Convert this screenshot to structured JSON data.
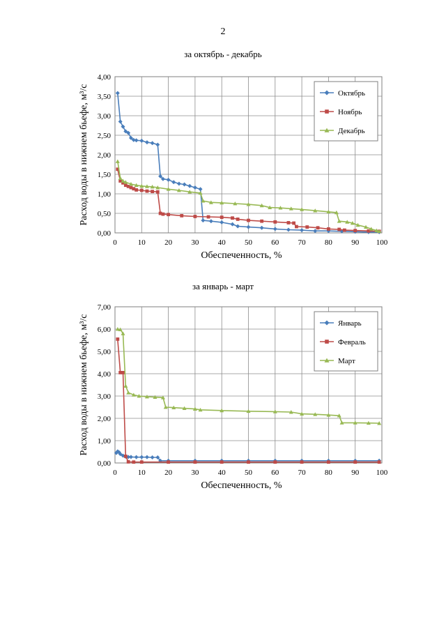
{
  "page_number": "2",
  "chart_data": [
    {
      "type": "line",
      "title": "за октябрь - декабрь",
      "xlabel": "Обеспеченность, %",
      "ylabel": "Расход воды в нижнем бьефе, м³/с",
      "xlim": [
        0,
        100
      ],
      "ylim": [
        0,
        4
      ],
      "x_ticks": [
        "0",
        "10",
        "20",
        "30",
        "40",
        "50",
        "60",
        "70",
        "80",
        "90",
        "100"
      ],
      "y_ticks": [
        "0,00",
        "0,50",
        "1,00",
        "1,50",
        "2,00",
        "2,50",
        "3,00",
        "3,50",
        "4,00"
      ],
      "grid": true,
      "legend_position": "top-right",
      "series": [
        {
          "name": "Октябрь",
          "color": "#4a7ebb",
          "marker": "diamond",
          "points": [
            [
              1,
              3.58
            ],
            [
              2,
              2.85
            ],
            [
              3,
              2.72
            ],
            [
              4,
              2.6
            ],
            [
              5,
              2.56
            ],
            [
              6,
              2.43
            ],
            [
              7,
              2.38
            ],
            [
              8,
              2.37
            ],
            [
              10,
              2.36
            ],
            [
              12,
              2.32
            ],
            [
              14,
              2.3
            ],
            [
              16,
              2.26
            ],
            [
              17,
              1.45
            ],
            [
              18,
              1.38
            ],
            [
              20,
              1.36
            ],
            [
              22,
              1.3
            ],
            [
              24,
              1.26
            ],
            [
              26,
              1.24
            ],
            [
              28,
              1.2
            ],
            [
              30,
              1.16
            ],
            [
              32,
              1.12
            ],
            [
              33,
              0.32
            ],
            [
              36,
              0.3
            ],
            [
              40,
              0.27
            ],
            [
              44,
              0.22
            ],
            [
              46,
              0.17
            ],
            [
              50,
              0.15
            ],
            [
              55,
              0.13
            ],
            [
              60,
              0.1
            ],
            [
              65,
              0.08
            ],
            [
              70,
              0.07
            ],
            [
              75,
              0.05
            ],
            [
              80,
              0.05
            ],
            [
              85,
              0.04
            ],
            [
              90,
              0.03
            ],
            [
              95,
              0.02
            ],
            [
              99,
              0.02
            ]
          ]
        },
        {
          "name": "Ноябрь",
          "color": "#be4b48",
          "marker": "square",
          "points": [
            [
              1,
              1.63
            ],
            [
              2,
              1.33
            ],
            [
              3,
              1.28
            ],
            [
              4,
              1.22
            ],
            [
              5,
              1.19
            ],
            [
              6,
              1.16
            ],
            [
              7,
              1.13
            ],
            [
              8,
              1.1
            ],
            [
              10,
              1.09
            ],
            [
              12,
              1.07
            ],
            [
              14,
              1.06
            ],
            [
              16,
              1.05
            ],
            [
              17,
              0.5
            ],
            [
              18,
              0.48
            ],
            [
              20,
              0.47
            ],
            [
              25,
              0.44
            ],
            [
              30,
              0.42
            ],
            [
              35,
              0.41
            ],
            [
              40,
              0.4
            ],
            [
              44,
              0.38
            ],
            [
              46,
              0.35
            ],
            [
              50,
              0.32
            ],
            [
              55,
              0.3
            ],
            [
              60,
              0.28
            ],
            [
              65,
              0.26
            ],
            [
              67,
              0.25
            ],
            [
              68,
              0.16
            ],
            [
              72,
              0.15
            ],
            [
              76,
              0.13
            ],
            [
              80,
              0.1
            ],
            [
              84,
              0.09
            ],
            [
              86,
              0.07
            ],
            [
              90,
              0.06
            ],
            [
              95,
              0.05
            ],
            [
              99,
              0.04
            ]
          ]
        },
        {
          "name": "Декабрь",
          "color": "#98b954",
          "marker": "triangle",
          "points": [
            [
              1,
              1.83
            ],
            [
              2,
              1.4
            ],
            [
              3,
              1.33
            ],
            [
              4,
              1.3
            ],
            [
              6,
              1.25
            ],
            [
              8,
              1.22
            ],
            [
              10,
              1.2
            ],
            [
              12,
              1.19
            ],
            [
              14,
              1.18
            ],
            [
              16,
              1.16
            ],
            [
              20,
              1.12
            ],
            [
              24,
              1.09
            ],
            [
              28,
              1.05
            ],
            [
              32,
              1.02
            ],
            [
              33,
              0.82
            ],
            [
              36,
              0.78
            ],
            [
              40,
              0.77
            ],
            [
              45,
              0.75
            ],
            [
              50,
              0.73
            ],
            [
              55,
              0.7
            ],
            [
              58,
              0.65
            ],
            [
              62,
              0.64
            ],
            [
              66,
              0.62
            ],
            [
              70,
              0.6
            ],
            [
              75,
              0.57
            ],
            [
              80,
              0.54
            ],
            [
              83,
              0.52
            ],
            [
              84,
              0.3
            ],
            [
              87,
              0.28
            ],
            [
              89,
              0.25
            ],
            [
              91,
              0.2
            ],
            [
              94,
              0.15
            ],
            [
              96,
              0.1
            ],
            [
              98,
              0.06
            ],
            [
              99,
              0.04
            ]
          ]
        }
      ]
    },
    {
      "type": "line",
      "title": "за январь - март",
      "xlabel": "Обеспеченность, %",
      "ylabel": "Расход воды в нижнем бьефе, м³/с",
      "xlim": [
        0,
        100
      ],
      "ylim": [
        0,
        7
      ],
      "x_ticks": [
        "0",
        "10",
        "20",
        "30",
        "40",
        "50",
        "60",
        "70",
        "80",
        "90",
        "100"
      ],
      "y_ticks": [
        "0,00",
        "1,00",
        "2,00",
        "3,00",
        "4,00",
        "5,00",
        "6,00",
        "7,00"
      ],
      "grid": true,
      "legend_position": "top-right",
      "series": [
        {
          "name": "Январь",
          "color": "#4a7ebb",
          "marker": "diamond",
          "points": [
            [
              0.5,
              0.45
            ],
            [
              1,
              0.52
            ],
            [
              1.5,
              0.48
            ],
            [
              2,
              0.4
            ],
            [
              3,
              0.33
            ],
            [
              4,
              0.28
            ],
            [
              5,
              0.27
            ],
            [
              6,
              0.27
            ],
            [
              8,
              0.26
            ],
            [
              10,
              0.26
            ],
            [
              12,
              0.26
            ],
            [
              14,
              0.25
            ],
            [
              16,
              0.25
            ],
            [
              17,
              0.1
            ],
            [
              20,
              0.1
            ],
            [
              30,
              0.1
            ],
            [
              40,
              0.1
            ],
            [
              50,
              0.1
            ],
            [
              60,
              0.1
            ],
            [
              70,
              0.1
            ],
            [
              80,
              0.1
            ],
            [
              90,
              0.1
            ],
            [
              99,
              0.1
            ]
          ]
        },
        {
          "name": "Февраль",
          "color": "#be4b48",
          "marker": "square",
          "points": [
            [
              1,
              5.55
            ],
            [
              2,
              4.05
            ],
            [
              3,
              4.05
            ],
            [
              4,
              0.3
            ],
            [
              5,
              0.05
            ],
            [
              7,
              0.04
            ],
            [
              10,
              0.04
            ],
            [
              20,
              0.04
            ],
            [
              30,
              0.04
            ],
            [
              40,
              0.04
            ],
            [
              50,
              0.04
            ],
            [
              60,
              0.04
            ],
            [
              70,
              0.04
            ],
            [
              80,
              0.04
            ],
            [
              90,
              0.04
            ],
            [
              99,
              0.04
            ]
          ]
        },
        {
          "name": "Март",
          "color": "#98b954",
          "marker": "triangle",
          "points": [
            [
              1,
              6.0
            ],
            [
              2,
              5.98
            ],
            [
              3,
              5.8
            ],
            [
              4,
              3.45
            ],
            [
              5,
              3.15
            ],
            [
              7,
              3.05
            ],
            [
              9,
              3.0
            ],
            [
              12,
              2.97
            ],
            [
              15,
              2.95
            ],
            [
              18,
              2.93
            ],
            [
              19,
              2.5
            ],
            [
              22,
              2.48
            ],
            [
              26,
              2.45
            ],
            [
              30,
              2.42
            ],
            [
              32,
              2.38
            ],
            [
              40,
              2.35
            ],
            [
              50,
              2.32
            ],
            [
              60,
              2.3
            ],
            [
              66,
              2.28
            ],
            [
              70,
              2.2
            ],
            [
              75,
              2.18
            ],
            [
              80,
              2.15
            ],
            [
              84,
              2.12
            ],
            [
              85,
              1.8
            ],
            [
              90,
              1.8
            ],
            [
              95,
              1.79
            ],
            [
              99,
              1.78
            ]
          ]
        }
      ]
    }
  ]
}
